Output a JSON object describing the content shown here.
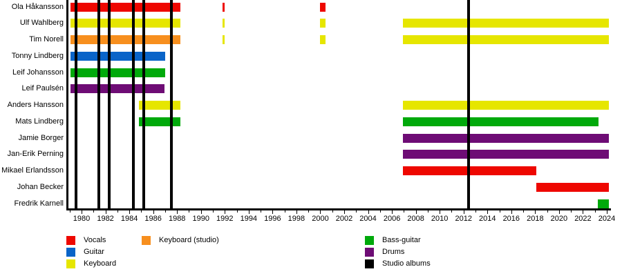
{
  "chart_data": {
    "type": "gantt",
    "title": "",
    "x_domain": [
      1978.84,
      2024.29
    ],
    "x_axis": {
      "labeled_ticks": [
        1980,
        1982,
        1984,
        1986,
        1988,
        1990,
        1992,
        1994,
        1996,
        1998,
        2000,
        2002,
        2004,
        2006,
        2008,
        2010,
        2012,
        2014,
        2016,
        2018,
        2020,
        2022,
        2024
      ],
      "minor_tick_step": 1,
      "grid": false
    },
    "colors": {
      "vocals": "#EE0700",
      "guitar": "#0A64C8",
      "keyboard": "#E6E600",
      "keyboard_studio": "#F78F1E",
      "bass_guitar": "#00A90B",
      "drums": "#6E0C75",
      "studio_albums": "#000000"
    },
    "members": [
      {
        "name": "Ola Håkansson",
        "segments": [
          {
            "role": "vocals",
            "start": 1979.05,
            "end": 1988.25
          },
          {
            "role": "vocals",
            "start": 1991.8,
            "end": 1992.0
          },
          {
            "role": "vocals",
            "start": 2000.0,
            "end": 2000.45
          }
        ]
      },
      {
        "name": "Ulf Wahlberg",
        "segments": [
          {
            "role": "keyboard",
            "start": 1979.05,
            "end": 1988.25
          },
          {
            "role": "keyboard",
            "start": 1991.8,
            "end": 1992.0
          },
          {
            "role": "keyboard",
            "start": 2000.0,
            "end": 2000.45
          },
          {
            "role": "keyboard",
            "start": 2006.9,
            "end": 2024.18
          }
        ]
      },
      {
        "name": "Tim Norell",
        "segments": [
          {
            "role": "keyboard_studio",
            "start": 1979.05,
            "end": 1988.25
          },
          {
            "role": "keyboard",
            "start": 1991.8,
            "end": 1992.0
          },
          {
            "role": "keyboard",
            "start": 2000.0,
            "end": 2000.45
          },
          {
            "role": "keyboard",
            "start": 2006.9,
            "end": 2024.18
          }
        ]
      },
      {
        "name": "Tonny Lindberg",
        "segments": [
          {
            "role": "guitar",
            "start": 1979.05,
            "end": 1987.0
          }
        ]
      },
      {
        "name": "Leif Johansson",
        "segments": [
          {
            "role": "bass_guitar",
            "start": 1979.05,
            "end": 1987.0
          }
        ]
      },
      {
        "name": "Leif Paulsén",
        "segments": [
          {
            "role": "drums",
            "start": 1979.05,
            "end": 1986.95
          }
        ]
      },
      {
        "name": "Anders Hansson",
        "segments": [
          {
            "role": "keyboard",
            "start": 1984.8,
            "end": 1988.3
          },
          {
            "role": "keyboard",
            "start": 2006.9,
            "end": 2024.18
          }
        ]
      },
      {
        "name": "Mats Lindberg",
        "segments": [
          {
            "role": "bass_guitar",
            "start": 1984.8,
            "end": 1988.25
          },
          {
            "role": "bass_guitar",
            "start": 2006.9,
            "end": 2023.3
          }
        ]
      },
      {
        "name": "Jamie Borger",
        "segments": [
          {
            "role": "drums",
            "start": 2006.9,
            "end": 2024.18
          }
        ]
      },
      {
        "name": "Jan-Erik Perning",
        "segments": [
          {
            "role": "drums",
            "start": 2006.9,
            "end": 2024.18
          }
        ]
      },
      {
        "name": "Mikael Erlandsson",
        "segments": [
          {
            "role": "vocals",
            "start": 2006.9,
            "end": 2018.1
          }
        ]
      },
      {
        "name": "Johan Becker",
        "segments": [
          {
            "role": "vocals",
            "start": 2018.1,
            "end": 2024.18
          }
        ]
      },
      {
        "name": "Fredrik Karnell",
        "segments": [
          {
            "role": "bass_guitar",
            "start": 2023.25,
            "end": 2024.18
          }
        ]
      }
    ],
    "album_lines": [
      1979.55,
      1981.45,
      1982.3,
      1984.35,
      1985.2,
      1987.5,
      2012.4
    ],
    "legend": {
      "position": "bottom",
      "items": [
        {
          "label": "Vocals",
          "role": "vocals",
          "col": 0,
          "row": 0
        },
        {
          "label": "Guitar",
          "role": "guitar",
          "col": 0,
          "row": 1
        },
        {
          "label": "Keyboard",
          "role": "keyboard",
          "col": 0,
          "row": 2
        },
        {
          "label": "Keyboard (studio)",
          "role": "keyboard_studio",
          "col": 1,
          "row": 0
        },
        {
          "label": "Bass-guitar",
          "role": "bass_guitar",
          "col": 2,
          "row": 0
        },
        {
          "label": "Drums",
          "role": "drums",
          "col": 2,
          "row": 1
        },
        {
          "label": "Studio albums",
          "role": "studio_albums",
          "col": 2,
          "row": 2
        }
      ]
    }
  },
  "layout_note": "band members timeline"
}
